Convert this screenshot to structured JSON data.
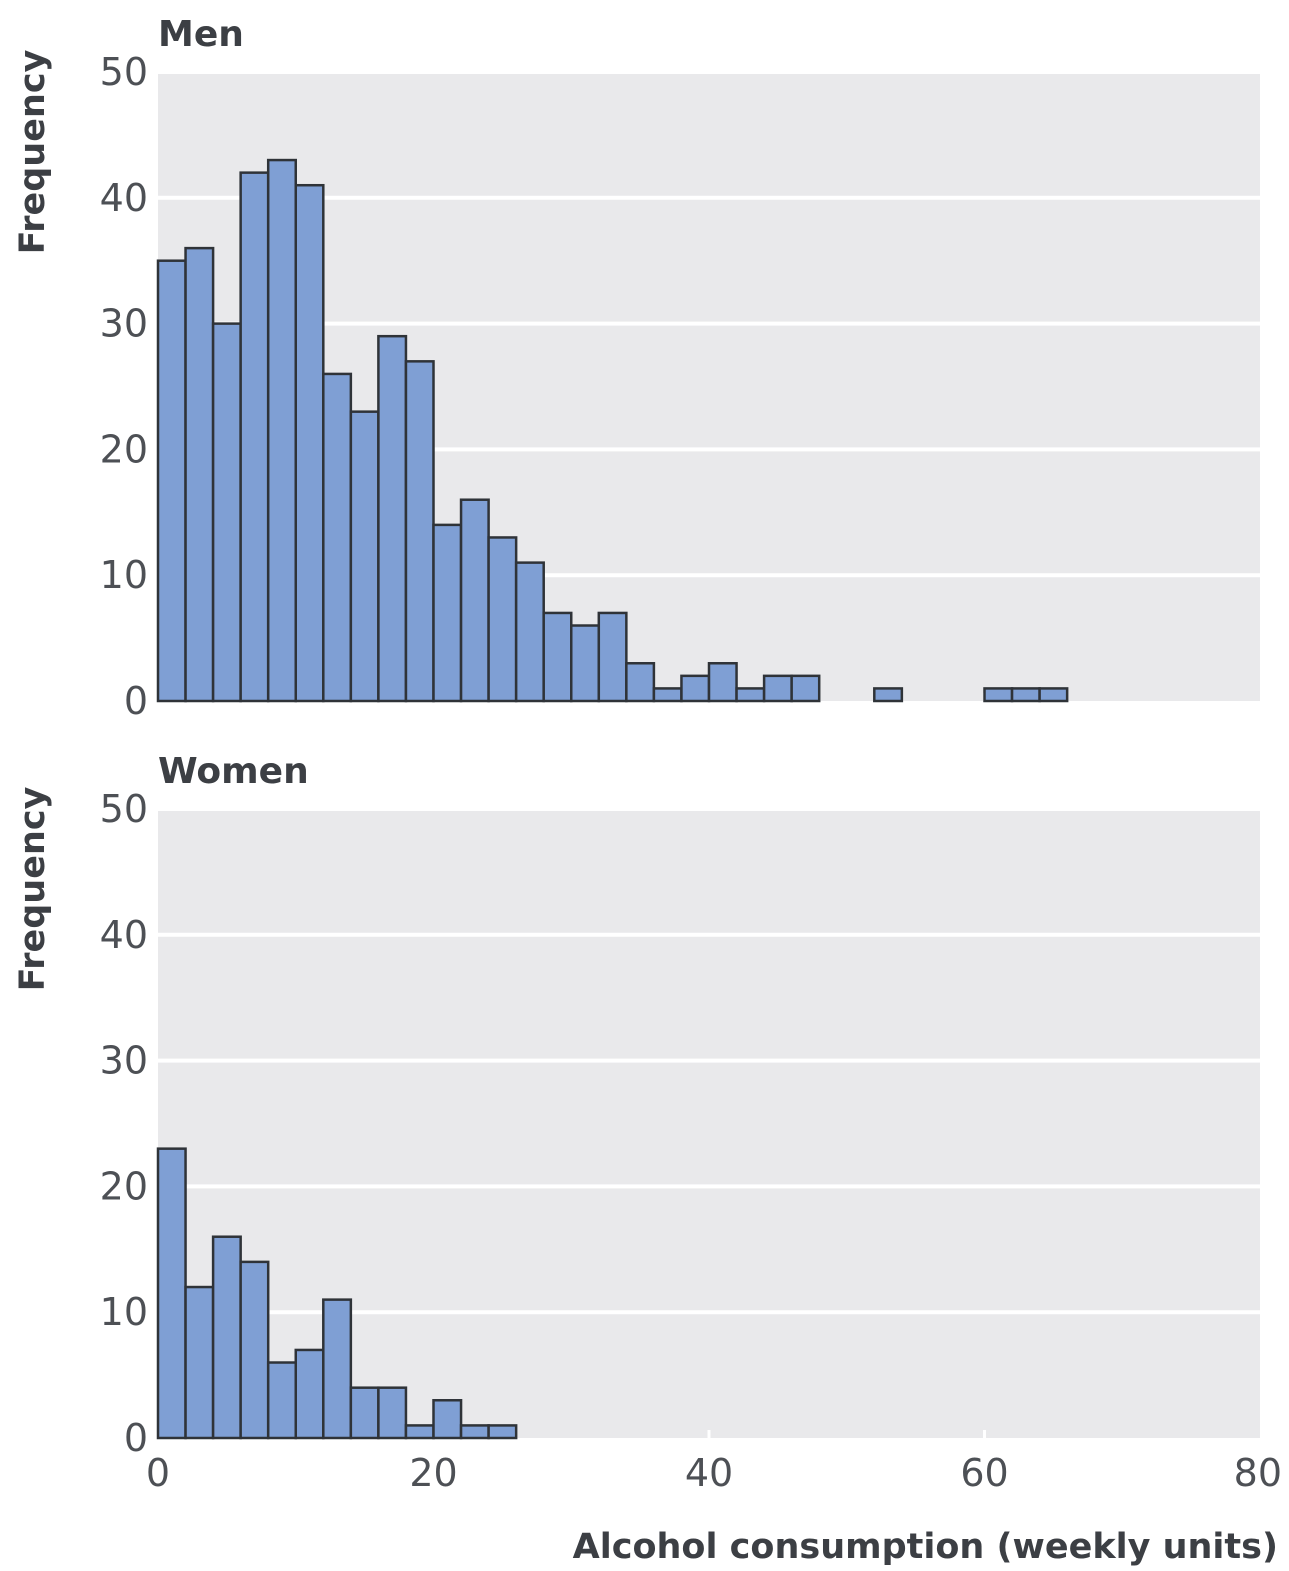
{
  "chart_data": [
    {
      "type": "bar",
      "title": "Men",
      "ylabel": "Frequency",
      "xlabel": "",
      "bin_width": 2,
      "x_bin_starts": [
        0,
        2,
        4,
        6,
        8,
        10,
        12,
        14,
        16,
        18,
        20,
        22,
        24,
        26,
        28,
        30,
        32,
        34,
        36,
        38,
        40,
        42,
        44,
        46,
        48,
        50,
        52,
        54,
        56,
        58,
        60,
        62,
        64
      ],
      "values": [
        35,
        36,
        30,
        42,
        43,
        41,
        26,
        23,
        29,
        27,
        14,
        16,
        13,
        11,
        7,
        6,
        7,
        3,
        1,
        2,
        3,
        1,
        2,
        2,
        0,
        0,
        1,
        0,
        0,
        0,
        1,
        1,
        1
      ],
      "xlim": [
        0,
        80
      ],
      "ylim": [
        0,
        50
      ],
      "yticks": [
        "0",
        "10",
        "20",
        "30",
        "40",
        "50"
      ],
      "xticks": [],
      "grid": true
    },
    {
      "type": "bar",
      "title": "Women",
      "ylabel": "Frequency",
      "xlabel": "Alcohol consumption (weekly units)",
      "bin_width": 2,
      "x_bin_starts": [
        0,
        2,
        4,
        6,
        8,
        10,
        12,
        14,
        16,
        18,
        20,
        22,
        24
      ],
      "values": [
        23,
        12,
        16,
        14,
        6,
        7,
        11,
        4,
        4,
        1,
        3,
        1,
        1
      ],
      "xlim": [
        0,
        80
      ],
      "ylim": [
        0,
        50
      ],
      "yticks": [
        "0",
        "10",
        "20",
        "30",
        "40",
        "50"
      ],
      "xticks": [
        "0",
        "20",
        "40",
        "60",
        "80"
      ],
      "grid": true
    }
  ]
}
